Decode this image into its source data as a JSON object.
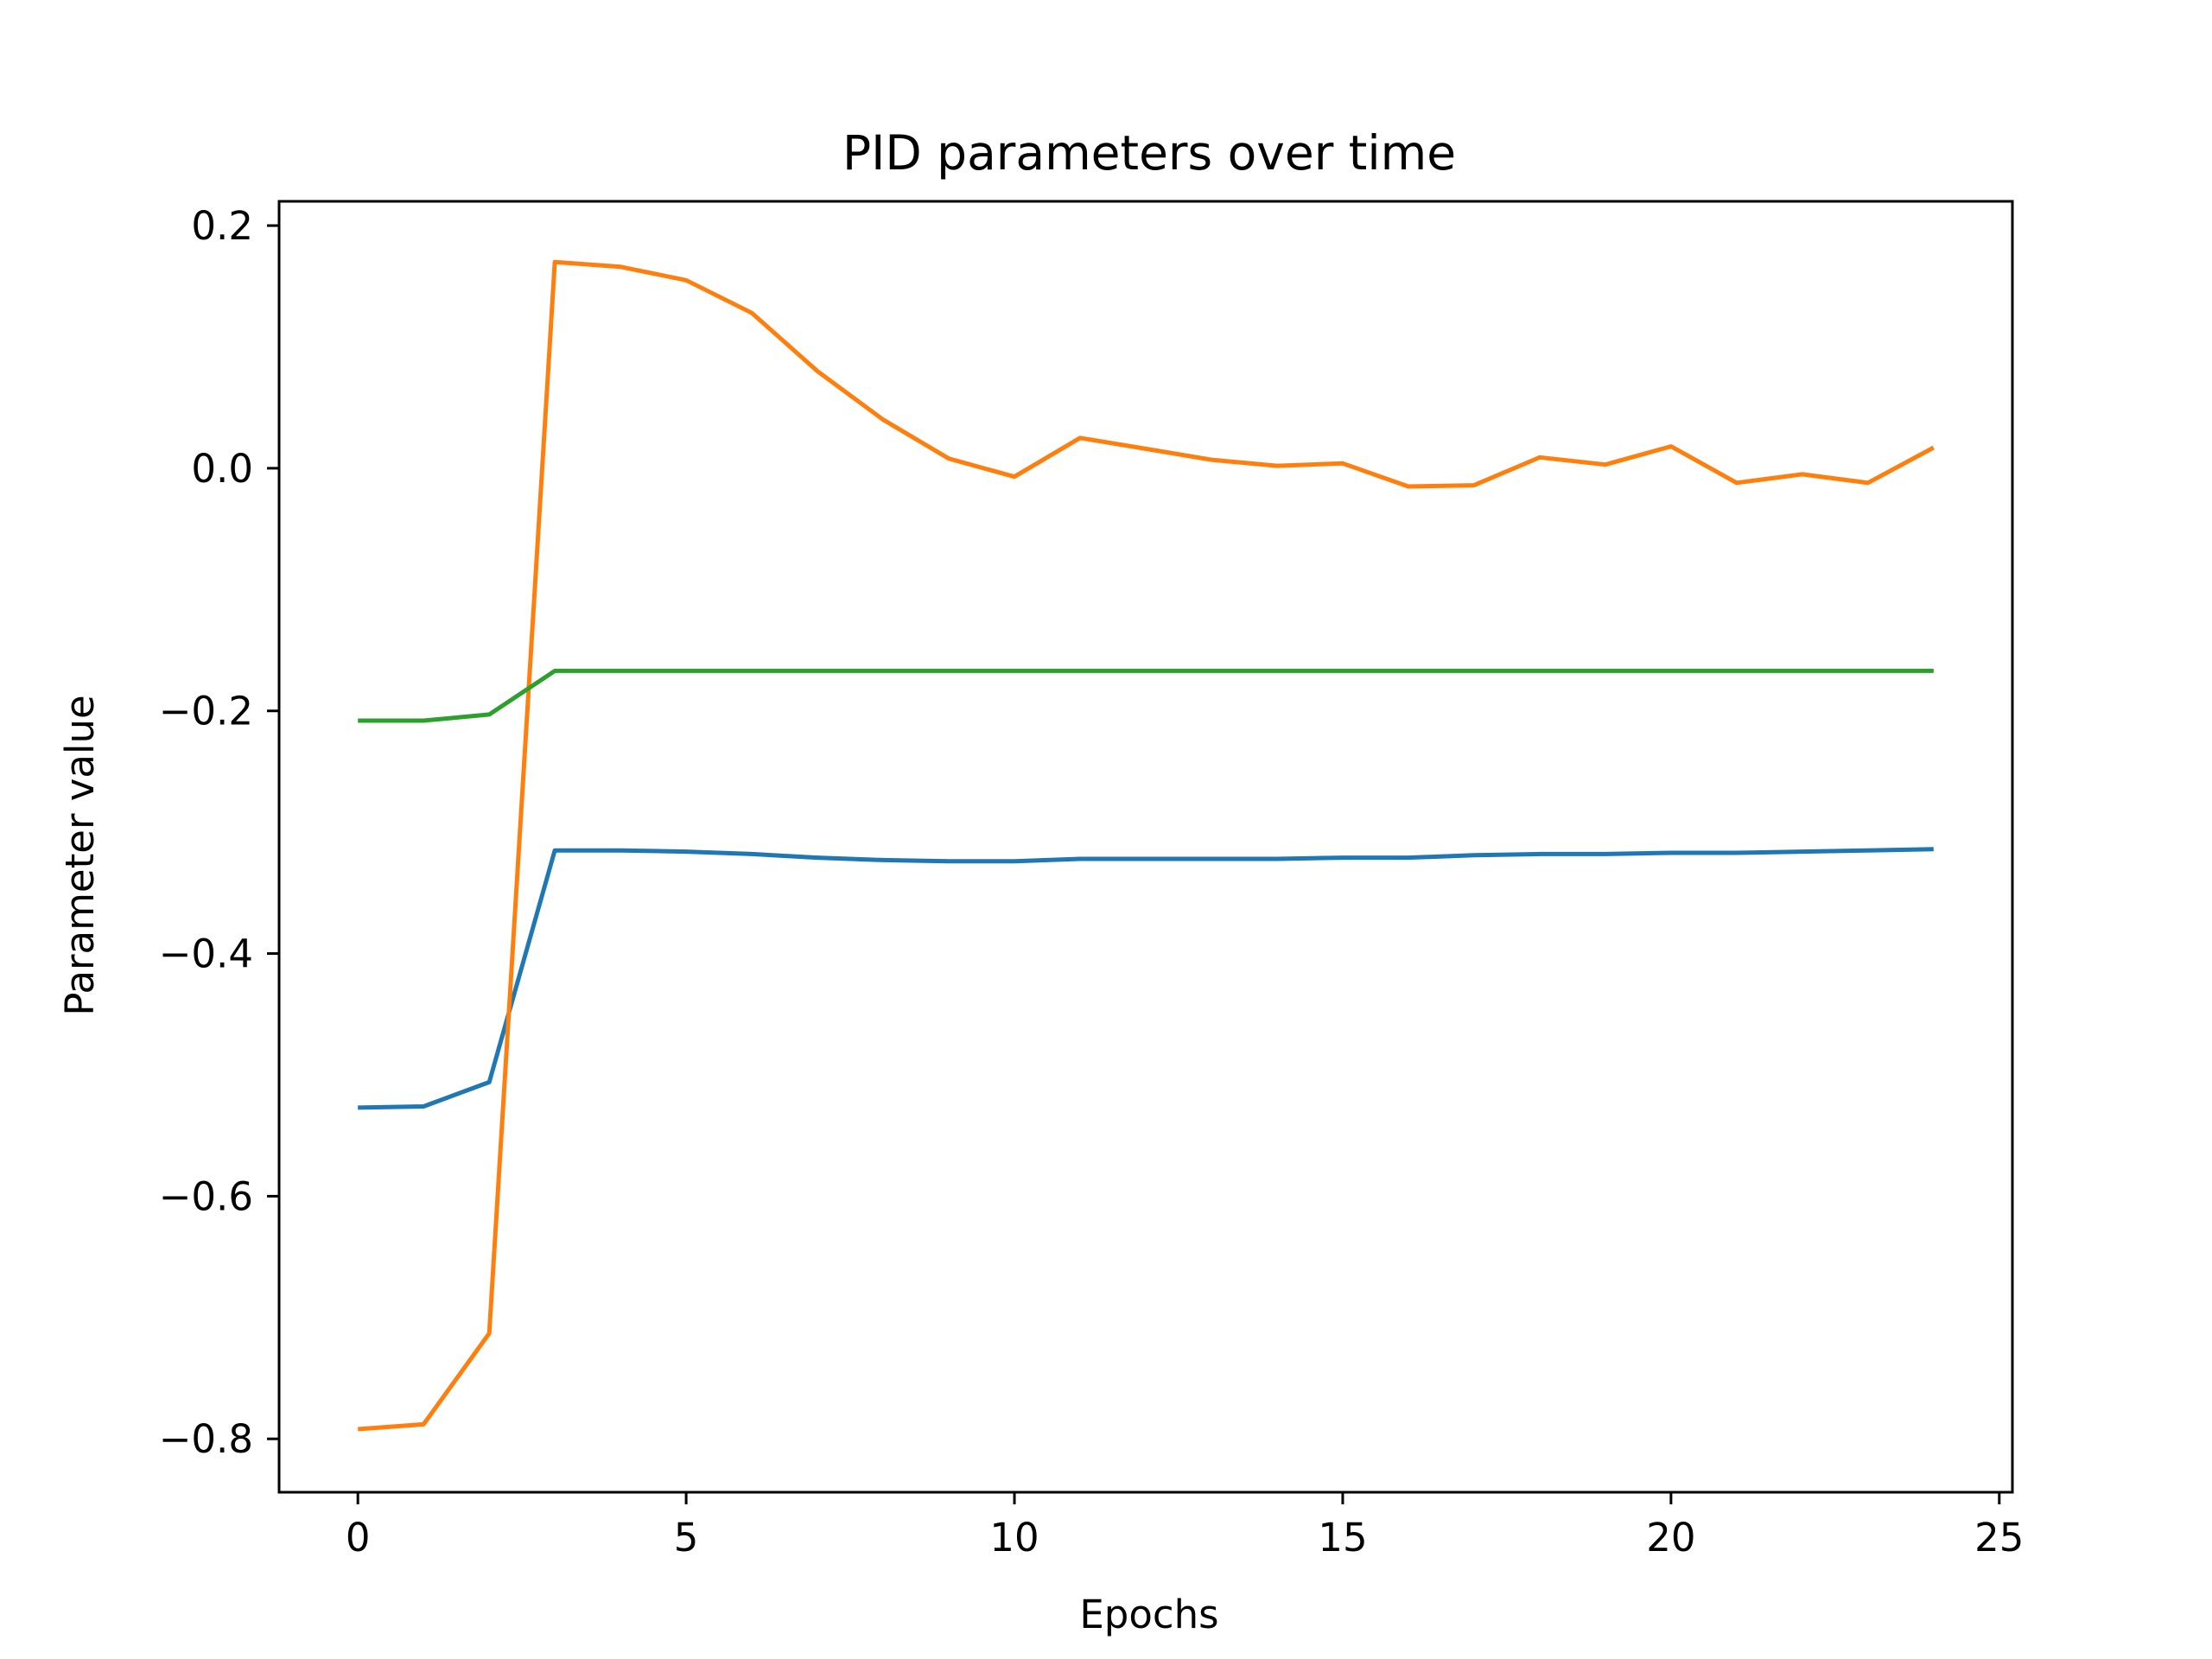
{
  "chart_data": {
    "type": "line",
    "title": "PID parameters over time",
    "xlabel": "Epochs",
    "ylabel": "Parameter value",
    "xlim": [
      -1.2,
      25.2
    ],
    "ylim": [
      -0.844,
      0.22
    ],
    "xticks": [
      0,
      5,
      10,
      15,
      20,
      25
    ],
    "xtick_labels": [
      "0",
      "5",
      "10",
      "15",
      "20",
      "25"
    ],
    "yticks": [
      -0.8,
      -0.6,
      -0.4,
      -0.2,
      0.0,
      0.2
    ],
    "ytick_labels": [
      "−0.8",
      "−0.6",
      "−0.4",
      "−0.2",
      "0.0",
      "0.2"
    ],
    "grid": false,
    "x": [
      0,
      1,
      2,
      3,
      4,
      5,
      6,
      7,
      8,
      9,
      10,
      11,
      12,
      13,
      14,
      15,
      16,
      17,
      18,
      19,
      20,
      21,
      22,
      23,
      24
    ],
    "series": [
      {
        "color": "#1f77b4",
        "values": [
          -0.527,
          -0.526,
          -0.506,
          -0.315,
          -0.315,
          -0.316,
          -0.318,
          -0.321,
          -0.323,
          -0.324,
          -0.324,
          -0.322,
          -0.322,
          -0.322,
          -0.322,
          -0.321,
          -0.321,
          -0.319,
          -0.318,
          -0.318,
          -0.317,
          -0.317,
          -0.316,
          -0.315,
          -0.314
        ]
      },
      {
        "color": "#ff7f0e",
        "values": [
          -0.792,
          -0.788,
          -0.713,
          0.17,
          0.166,
          0.155,
          0.128,
          0.08,
          0.04,
          0.008,
          -0.007,
          0.025,
          0.016,
          0.007,
          0.002,
          0.004,
          -0.015,
          -0.014,
          0.009,
          0.003,
          0.018,
          -0.012,
          -0.005,
          -0.012,
          0.017
        ]
      },
      {
        "color": "#2ca02c",
        "values": [
          -0.208,
          -0.208,
          -0.203,
          -0.167,
          -0.167,
          -0.167,
          -0.167,
          -0.167,
          -0.167,
          -0.167,
          -0.167,
          -0.167,
          -0.167,
          -0.167,
          -0.167,
          -0.167,
          -0.167,
          -0.167,
          -0.167,
          -0.167,
          -0.167,
          -0.167,
          -0.167,
          -0.167,
          -0.167
        ]
      }
    ]
  }
}
